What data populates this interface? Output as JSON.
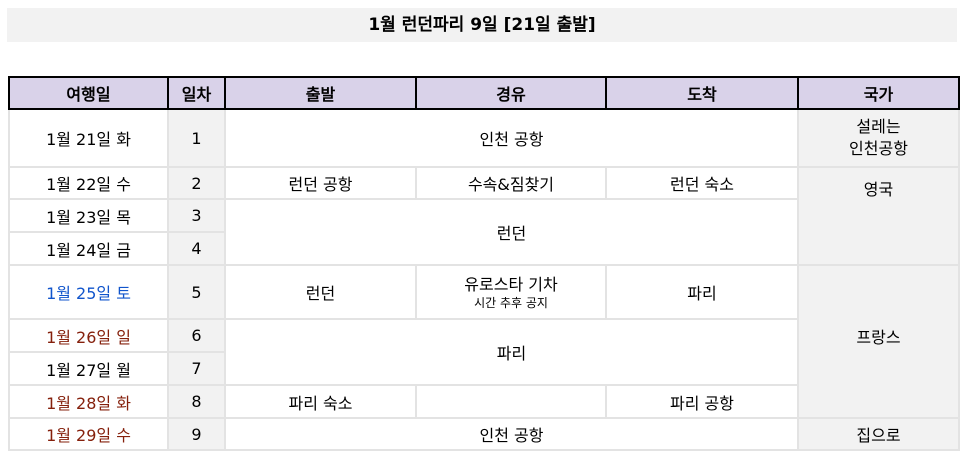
{
  "title": "1월 런던파리 9일 [21일 출발]",
  "headers": [
    "여행일",
    "일차",
    "출발",
    "경유",
    "도착",
    "국가"
  ],
  "dates": [
    "1월 21일 화",
    "1월 22일 수",
    "1월 23일 목",
    "1월 24일 금",
    "1월 25일 토",
    "1월 26일 일",
    "1월 27일 월",
    "1월 28일 화",
    "1월 29일 수"
  ],
  "days": [
    "1",
    "2",
    "3",
    "4",
    "5",
    "6",
    "7",
    "8",
    "9"
  ],
  "cells": {
    "r1_route": "인천 공항",
    "r1_country_1": "설레는",
    "r1_country_2": "인천공항",
    "r2_dep": "런던 공항",
    "r2_via": "수속&짐찾기",
    "r2_arr": "런던 숙소",
    "uk": "영국",
    "london": "런던",
    "r5_dep": "런던",
    "r5_via": "유로스타 기차",
    "r5_via_note": "시간 추후 공지",
    "r5_arr": "파리",
    "france": "프랑스",
    "paris": "파리",
    "r8_dep": "파리 숙소",
    "r8_arr": "파리 공항",
    "r9_route": "인천 공항",
    "r9_country": "집으로"
  },
  "colors": {
    "header_bg": "#d9d2e9",
    "saturday": "#1155cc",
    "holiday": "#85200c"
  }
}
